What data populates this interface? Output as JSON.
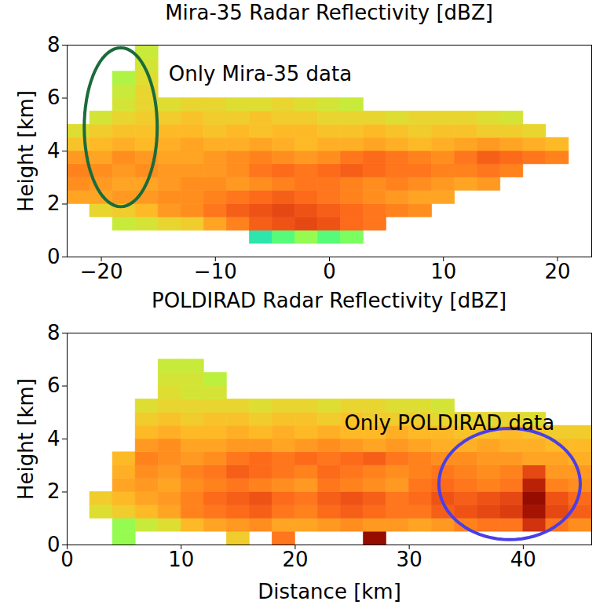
{
  "chart_data": [
    {
      "type": "heatmap",
      "title": "Mira-35 Radar Reflectivity [dBZ]",
      "ylabel": "Height [km]",
      "xlim": [
        -23,
        23
      ],
      "xticks": [
        -20,
        -10,
        0,
        10,
        20
      ],
      "ylim": [
        0,
        8
      ],
      "yticks": [
        0,
        2,
        4,
        6,
        8
      ],
      "grid": false,
      "zlim": [
        -40,
        20
      ],
      "x": [
        -22,
        -20,
        -18,
        -16,
        -14,
        -12,
        -10,
        -8,
        -6,
        -4,
        -2,
        0,
        2,
        4,
        6,
        8,
        10,
        12,
        14,
        16,
        18,
        20,
        22
      ],
      "y": [
        0.75,
        1.25,
        1.75,
        2.25,
        2.75,
        3.25,
        3.75,
        4.25,
        4.75,
        5.25,
        5.75,
        6.25,
        6.75,
        7.25,
        7.75
      ],
      "z": [
        [
          null,
          null,
          null,
          null,
          null,
          null,
          null,
          null,
          -20,
          -15,
          -10,
          -15,
          -12,
          null,
          null,
          null,
          null,
          null,
          null,
          null,
          null,
          null,
          null
        ],
        [
          null,
          null,
          -6,
          -5,
          -3,
          -2,
          2,
          5,
          8,
          9,
          10,
          9,
          7,
          6,
          null,
          null,
          null,
          null,
          null,
          null,
          null,
          null,
          null
        ],
        [
          null,
          -3,
          -2,
          0,
          3,
          4,
          6,
          8,
          9,
          10,
          9,
          8,
          7,
          6,
          5,
          4,
          null,
          null,
          null,
          null,
          null,
          null,
          null
        ],
        [
          2,
          2,
          3,
          3,
          4,
          4,
          5,
          6,
          7,
          8,
          7,
          6,
          5,
          4,
          3,
          2,
          2,
          null,
          null,
          null,
          null,
          null,
          null
        ],
        [
          4,
          3,
          2,
          2,
          3,
          4,
          4,
          3,
          4,
          5,
          6,
          6,
          5,
          4,
          5,
          4,
          3,
          2,
          3,
          null,
          null,
          null,
          null
        ],
        [
          5,
          4,
          3,
          4,
          3,
          3,
          3,
          4,
          6,
          7,
          6,
          7,
          8,
          7,
          6,
          6,
          5,
          5,
          6,
          5,
          null,
          null,
          null
        ],
        [
          3,
          2,
          4,
          3,
          2,
          2,
          3,
          4,
          5,
          4,
          3,
          4,
          6,
          7,
          6,
          5,
          4,
          6,
          8,
          7,
          6,
          5,
          null
        ],
        [
          -1,
          0,
          1,
          0,
          1,
          2,
          1,
          1,
          2,
          1,
          0,
          1,
          1,
          2,
          1,
          0,
          1,
          2,
          3,
          2,
          1,
          0,
          null
        ],
        [
          -4,
          -2,
          -1,
          -1,
          0,
          0,
          -1,
          0,
          -1,
          0,
          0,
          -1,
          -1,
          0,
          -1,
          -2,
          -1,
          -1,
          -2,
          -2,
          -3,
          null,
          null
        ],
        [
          null,
          -5,
          -3,
          -2,
          -2,
          -1,
          -2,
          -2,
          -1,
          -2,
          -2,
          -3,
          -3,
          -3,
          -4,
          -3,
          -3,
          -3,
          -4,
          -5,
          null,
          null,
          null
        ],
        [
          null,
          null,
          -5,
          -3,
          -4,
          -3,
          -3,
          -4,
          -4,
          -3,
          -4,
          -5,
          -6,
          null,
          null,
          null,
          null,
          null,
          null,
          null,
          null,
          null,
          null
        ],
        [
          null,
          null,
          -6,
          -3,
          null,
          null,
          null,
          null,
          null,
          null,
          null,
          null,
          null,
          null,
          null,
          null,
          null,
          null,
          null,
          null,
          null,
          null,
          null
        ],
        [
          null,
          null,
          -8,
          -4,
          null,
          null,
          null,
          null,
          null,
          null,
          null,
          null,
          null,
          null,
          null,
          null,
          null,
          null,
          null,
          null,
          null,
          null,
          null
        ],
        [
          null,
          null,
          null,
          -5,
          null,
          null,
          null,
          null,
          null,
          null,
          null,
          null,
          null,
          null,
          null,
          null,
          null,
          null,
          null,
          null,
          null,
          null,
          null
        ],
        [
          null,
          null,
          null,
          -6,
          null,
          null,
          null,
          null,
          null,
          null,
          null,
          null,
          null,
          null,
          null,
          null,
          null,
          null,
          null,
          null,
          null,
          null,
          null
        ]
      ],
      "annotations": [
        {
          "text": "Only Mira-35 data",
          "x": -14.1,
          "y": 6.9,
          "ellipse": {
            "cx": -18.3,
            "cy": 4.9,
            "rx": 3.2,
            "ry": 3.0,
            "color": "#1b6b3c"
          }
        }
      ]
    },
    {
      "type": "heatmap",
      "title": "POLDIRAD Radar Reflectivity [dBZ]",
      "xlabel": "Distance [km]",
      "ylabel": "Height [km]",
      "xlim": [
        0,
        46
      ],
      "xticks": [
        0,
        10,
        20,
        30,
        40
      ],
      "ylim": [
        0,
        8
      ],
      "yticks": [
        0,
        2,
        4,
        6,
        8
      ],
      "grid": false,
      "zlim": [
        -40,
        20
      ],
      "x": [
        1,
        3,
        5,
        7,
        9,
        11,
        13,
        15,
        17,
        19,
        21,
        23,
        25,
        27,
        29,
        31,
        33,
        35,
        37,
        39,
        41,
        43,
        45
      ],
      "y": [
        0.25,
        0.75,
        1.25,
        1.75,
        2.25,
        2.75,
        3.25,
        3.75,
        4.25,
        4.75,
        5.25,
        5.75,
        6.25,
        6.75
      ],
      "z": [
        [
          null,
          null,
          -10,
          null,
          null,
          null,
          null,
          -2,
          null,
          6,
          null,
          null,
          null,
          18,
          null,
          null,
          null,
          null,
          null,
          null,
          null,
          null,
          null
        ],
        [
          null,
          null,
          -10,
          -6,
          -4,
          0,
          2,
          3,
          4,
          2,
          2,
          3,
          4,
          3,
          3,
          2,
          3,
          5,
          6,
          6,
          12,
          6,
          4
        ],
        [
          null,
          -4,
          -2,
          0,
          2,
          5,
          6,
          7,
          8,
          6,
          5,
          7,
          8,
          7,
          6,
          6,
          8,
          9,
          10,
          11,
          16,
          10,
          8
        ],
        [
          null,
          -2,
          0,
          2,
          3,
          5,
          7,
          8,
          9,
          7,
          6,
          8,
          9,
          8,
          6,
          7,
          9,
          8,
          9,
          10,
          18,
          9,
          7
        ],
        [
          null,
          null,
          2,
          3,
          2,
          4,
          5,
          6,
          5,
          4,
          3,
          6,
          5,
          4,
          3,
          6,
          7,
          6,
          5,
          6,
          14,
          5,
          4
        ],
        [
          null,
          null,
          1,
          4,
          3,
          5,
          6,
          8,
          7,
          6,
          5,
          7,
          6,
          5,
          4,
          5,
          6,
          5,
          4,
          5,
          10,
          3,
          3
        ],
        [
          null,
          null,
          0,
          5,
          4,
          3,
          4,
          6,
          7,
          6,
          7,
          6,
          7,
          8,
          6,
          5,
          4,
          4,
          3,
          3,
          2,
          2,
          1
        ],
        [
          null,
          null,
          null,
          3,
          4,
          2,
          2,
          3,
          3,
          2,
          3,
          4,
          3,
          2,
          3,
          2,
          1,
          1,
          2,
          1,
          1,
          0,
          0
        ],
        [
          null,
          null,
          null,
          0,
          1,
          0,
          0,
          1,
          0,
          1,
          0,
          1,
          0,
          0,
          1,
          0,
          0,
          -1,
          -1,
          0,
          -1,
          -2,
          -2
        ],
        [
          null,
          null,
          null,
          -2,
          -1,
          -2,
          -1,
          -1,
          -2,
          -1,
          -1,
          -2,
          -1,
          -2,
          -2,
          -2,
          -3,
          -3,
          -3,
          -3,
          -4,
          null,
          null
        ],
        [
          null,
          null,
          null,
          -4,
          -3,
          -3,
          -3,
          -3,
          -4,
          -3,
          -3,
          -4,
          -3,
          -3,
          -4,
          -4,
          -5,
          null,
          null,
          null,
          null,
          null,
          null
        ],
        [
          null,
          null,
          null,
          null,
          -4,
          -5,
          -5,
          null,
          null,
          null,
          null,
          null,
          null,
          null,
          null,
          null,
          null,
          null,
          null,
          null,
          null,
          null,
          null
        ],
        [
          null,
          null,
          null,
          null,
          -5,
          -5,
          -7,
          null,
          null,
          null,
          null,
          null,
          null,
          null,
          null,
          null,
          null,
          null,
          null,
          null,
          null,
          null,
          null
        ],
        [
          null,
          null,
          null,
          null,
          -6,
          -6,
          null,
          null,
          null,
          null,
          null,
          null,
          null,
          null,
          null,
          null,
          null,
          null,
          null,
          null,
          null,
          null,
          null
        ]
      ],
      "annotations": [
        {
          "text": "Only POLDIRAD data",
          "x": 24.3,
          "y": 4.6,
          "ellipse": {
            "cx": 38.8,
            "cy": 2.3,
            "rx": 6.2,
            "ry": 2.1,
            "color": "#4a3fe6"
          }
        }
      ]
    }
  ]
}
